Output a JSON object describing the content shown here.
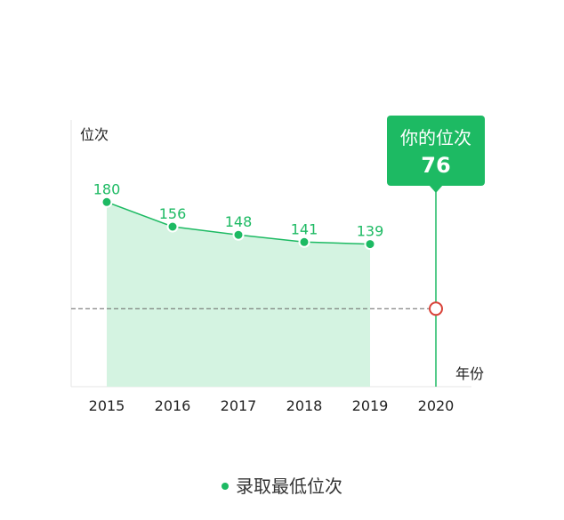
{
  "chart_data": {
    "type": "area",
    "x": [
      "2015",
      "2016",
      "2017",
      "2018",
      "2019"
    ],
    "series": [
      {
        "name": "录取最低位次",
        "values": [
          180,
          156,
          148,
          141,
          139
        ]
      }
    ],
    "x_ticks": [
      "2015",
      "2016",
      "2017",
      "2018",
      "2019",
      "2020"
    ],
    "xlabel": "年份",
    "ylabel": "位次",
    "ylim": [
      0,
      260
    ],
    "grid": false,
    "legend_position": "bottom-center",
    "highlight": {
      "year": "2020",
      "title": "你的位次",
      "value": 76
    },
    "colors": {
      "accent": "#1dba63",
      "area_fill": "#d4f3e1",
      "marker_ring": "#d9443a",
      "reference_line": "#666666",
      "axis": "#e5e5e5"
    }
  },
  "legend": {
    "label": "录取最低位次"
  }
}
